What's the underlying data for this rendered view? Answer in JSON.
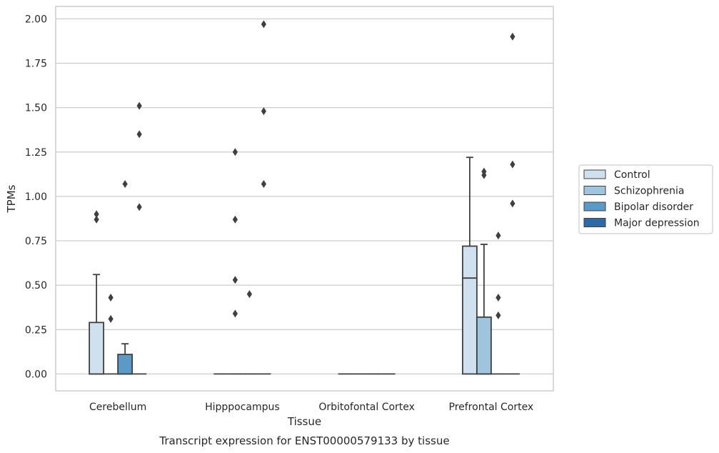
{
  "chart_data": {
    "type": "box",
    "title": "Transcript expression for ENST00000579133 by tissue",
    "xlabel": "Tissue",
    "ylabel": "TPMs",
    "ylim": [
      -0.095,
      2.07
    ],
    "yticks": [
      "0.00",
      "0.25",
      "0.50",
      "0.75",
      "1.00",
      "1.25",
      "1.50",
      "1.75",
      "2.00"
    ],
    "ytick_values": [
      0,
      0.25,
      0.5,
      0.75,
      1.0,
      1.25,
      1.5,
      1.75,
      2.0
    ],
    "grid": "horizontal",
    "legend_position": "right",
    "categories": [
      "Cerebellum",
      "Hipppocampus",
      "Orbitofontal Cortex",
      "Prefrontal Cortex"
    ],
    "series": [
      {
        "name": "Control",
        "color": "#cfe0ef",
        "boxes": [
          {
            "q1": 0,
            "median": 0,
            "q3": 0.29,
            "whisker_low": 0,
            "whisker_high": 0.56,
            "outliers": [
              0.87,
              0.9
            ]
          },
          {
            "q1": 0,
            "median": 0,
            "q3": 0,
            "whisker_low": 0,
            "whisker_high": 0,
            "outliers": []
          },
          {
            "q1": 0,
            "median": 0,
            "q3": 0,
            "whisker_low": 0,
            "whisker_high": 0,
            "outliers": []
          },
          {
            "q1": 0,
            "median": 0.54,
            "q3": 0.72,
            "whisker_low": 0,
            "whisker_high": 1.22,
            "outliers": []
          }
        ]
      },
      {
        "name": "Schizophrenia",
        "color": "#9fc4dd",
        "boxes": [
          {
            "q1": 0,
            "median": 0,
            "q3": 0,
            "whisker_low": 0,
            "whisker_high": 0,
            "outliers": [
              0.31,
              0.43
            ]
          },
          {
            "q1": 0,
            "median": 0,
            "q3": 0,
            "whisker_low": 0,
            "whisker_high": 0,
            "outliers": [
              0.34,
              0.53,
              0.87,
              1.25
            ]
          },
          {
            "q1": 0,
            "median": 0,
            "q3": 0,
            "whisker_low": 0,
            "whisker_high": 0,
            "outliers": []
          },
          {
            "q1": 0,
            "median": 0,
            "q3": 0.32,
            "whisker_low": 0,
            "whisker_high": 0.73,
            "outliers": [
              1.12,
              1.14
            ]
          }
        ]
      },
      {
        "name": "Bipolar disorder",
        "color": "#5a9ac6",
        "boxes": [
          {
            "q1": 0,
            "median": 0,
            "q3": 0.11,
            "whisker_low": 0,
            "whisker_high": 0.17,
            "outliers": [
              1.07
            ]
          },
          {
            "q1": 0,
            "median": 0,
            "q3": 0,
            "whisker_low": 0,
            "whisker_high": 0,
            "outliers": [
              0.45
            ]
          },
          {
            "q1": 0,
            "median": 0,
            "q3": 0,
            "whisker_low": 0,
            "whisker_high": 0,
            "outliers": []
          },
          {
            "q1": 0,
            "median": 0,
            "q3": 0,
            "whisker_low": 0,
            "whisker_high": 0,
            "outliers": [
              0.33,
              0.43,
              0.78
            ]
          }
        ]
      },
      {
        "name": "Major depression",
        "color": "#2d6aa8",
        "boxes": [
          {
            "q1": 0,
            "median": 0,
            "q3": 0,
            "whisker_low": 0,
            "whisker_high": 0,
            "outliers": [
              0.94,
              1.35,
              1.51
            ]
          },
          {
            "q1": 0,
            "median": 0,
            "q3": 0,
            "whisker_low": 0,
            "whisker_high": 0,
            "outliers": [
              1.07,
              1.48,
              1.97
            ]
          },
          {
            "q1": 0,
            "median": 0,
            "q3": 0,
            "whisker_low": 0,
            "whisker_high": 0,
            "outliers": []
          },
          {
            "q1": 0,
            "median": 0,
            "q3": 0,
            "whisker_low": 0,
            "whisker_high": 0,
            "outliers": [
              0.96,
              1.18,
              1.9
            ]
          }
        ]
      }
    ]
  }
}
